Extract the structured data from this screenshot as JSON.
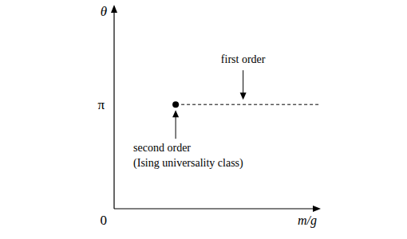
{
  "chart_data": {
    "type": "phase_diagram",
    "x_label": "m/g",
    "y_label": "θ",
    "xlim": [
      0,
      1
    ],
    "ylim": [
      0,
      6.1
    ],
    "yticks": [
      0,
      {
        "value": 3.14159,
        "label": "π"
      }
    ],
    "tick_labels": "y",
    "grid": false,
    "series": [
      {
        "type": "scatter",
        "marker": "circle",
        "color": "#000000",
        "x": [
          0.3
        ],
        "values": [
          3.14159
        ]
      },
      {
        "type": "line",
        "line_style": "dashed",
        "color": "#000000",
        "x": [
          0.3,
          1.0
        ],
        "values": [
          3.14159,
          3.14159
        ]
      }
    ],
    "annotations": [
      "first order",
      "second order",
      "(Ising universality class)"
    ]
  }
}
